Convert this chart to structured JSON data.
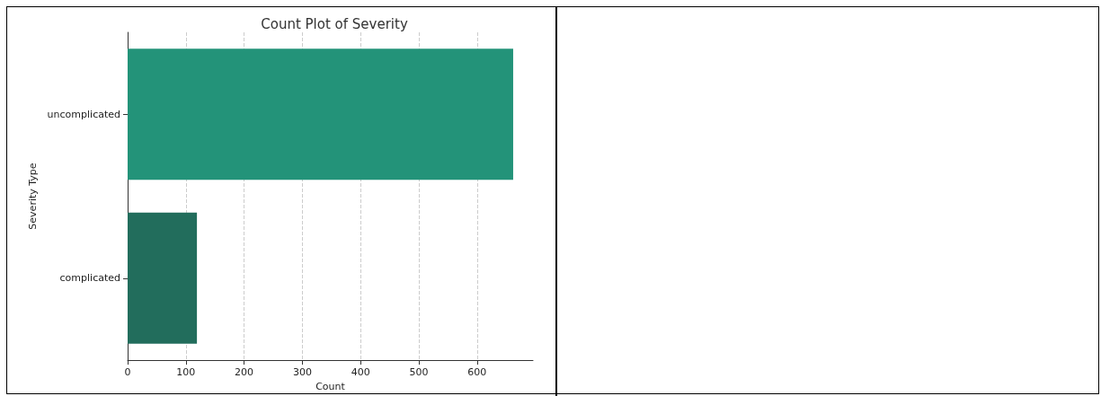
{
  "chart_data": {
    "type": "bar",
    "orientation": "horizontal",
    "title": "Count Plot of Severity",
    "xlabel": "Count",
    "ylabel": "Severity Type",
    "categories": [
      "uncomplicated",
      "complicated"
    ],
    "values": [
      662,
      119
    ],
    "colors": [
      "#239379",
      "#226d5c"
    ],
    "xlim": [
      0,
      696
    ],
    "xticks": [
      0,
      100,
      200,
      300,
      400,
      500,
      600
    ],
    "grid": "x"
  }
}
